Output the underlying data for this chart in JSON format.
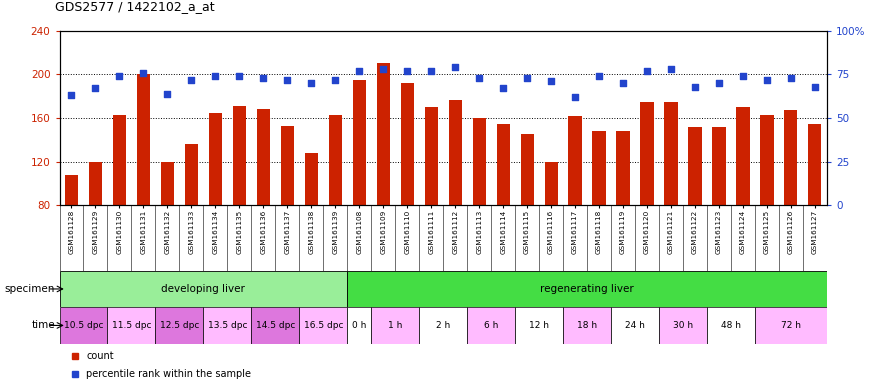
{
  "title": "GDS2577 / 1422102_a_at",
  "samples": [
    "GSM161128",
    "GSM161129",
    "GSM161130",
    "GSM161131",
    "GSM161132",
    "GSM161133",
    "GSM161134",
    "GSM161135",
    "GSM161136",
    "GSM161137",
    "GSM161138",
    "GSM161139",
    "GSM161108",
    "GSM161109",
    "GSM161110",
    "GSM161111",
    "GSM161112",
    "GSM161113",
    "GSM161114",
    "GSM161115",
    "GSM161116",
    "GSM161117",
    "GSM161118",
    "GSM161119",
    "GSM161120",
    "GSM161121",
    "GSM161122",
    "GSM161123",
    "GSM161124",
    "GSM161125",
    "GSM161126",
    "GSM161127"
  ],
  "bar_values": [
    108,
    120,
    163,
    200,
    120,
    136,
    165,
    171,
    168,
    153,
    128,
    163,
    195,
    210,
    192,
    170,
    177,
    160,
    155,
    145,
    120,
    162,
    148,
    148,
    175,
    175,
    152,
    152,
    170,
    163,
    167,
    155
  ],
  "percentile_values": [
    63,
    67,
    74,
    76,
    64,
    72,
    74,
    74,
    73,
    72,
    70,
    72,
    77,
    78,
    77,
    77,
    79,
    73,
    67,
    73,
    71,
    62,
    74,
    70,
    77,
    78,
    68,
    70,
    74,
    72,
    73,
    68
  ],
  "ylim_left": [
    80,
    240
  ],
  "ylim_right": [
    0,
    100
  ],
  "yticks_left": [
    80,
    120,
    160,
    200,
    240
  ],
  "yticks_right": [
    0,
    25,
    50,
    75,
    100
  ],
  "bar_color": "#cc2200",
  "point_color": "#2244cc",
  "bg_color": "#ffffff",
  "specimen_groups": [
    {
      "label": "developing liver",
      "start": 0,
      "end": 12,
      "color": "#99ee99"
    },
    {
      "label": "regenerating liver",
      "start": 12,
      "end": 32,
      "color": "#44dd44"
    }
  ],
  "time_groups": [
    {
      "label": "10.5 dpc",
      "start": 0,
      "end": 2,
      "color": "#dd77dd"
    },
    {
      "label": "11.5 dpc",
      "start": 2,
      "end": 4,
      "color": "#ffbbff"
    },
    {
      "label": "12.5 dpc",
      "start": 4,
      "end": 6,
      "color": "#dd77dd"
    },
    {
      "label": "13.5 dpc",
      "start": 6,
      "end": 8,
      "color": "#ffbbff"
    },
    {
      "label": "14.5 dpc",
      "start": 8,
      "end": 10,
      "color": "#dd77dd"
    },
    {
      "label": "16.5 dpc",
      "start": 10,
      "end": 12,
      "color": "#ffbbff"
    },
    {
      "label": "0 h",
      "start": 12,
      "end": 13,
      "color": "#ffffff"
    },
    {
      "label": "1 h",
      "start": 13,
      "end": 15,
      "color": "#ffbbff"
    },
    {
      "label": "2 h",
      "start": 15,
      "end": 17,
      "color": "#ffffff"
    },
    {
      "label": "6 h",
      "start": 17,
      "end": 19,
      "color": "#ffbbff"
    },
    {
      "label": "12 h",
      "start": 19,
      "end": 21,
      "color": "#ffffff"
    },
    {
      "label": "18 h",
      "start": 21,
      "end": 23,
      "color": "#ffbbff"
    },
    {
      "label": "24 h",
      "start": 23,
      "end": 25,
      "color": "#ffffff"
    },
    {
      "label": "30 h",
      "start": 25,
      "end": 27,
      "color": "#ffbbff"
    },
    {
      "label": "48 h",
      "start": 27,
      "end": 29,
      "color": "#ffffff"
    },
    {
      "label": "72 h",
      "start": 29,
      "end": 32,
      "color": "#ffbbff"
    }
  ]
}
